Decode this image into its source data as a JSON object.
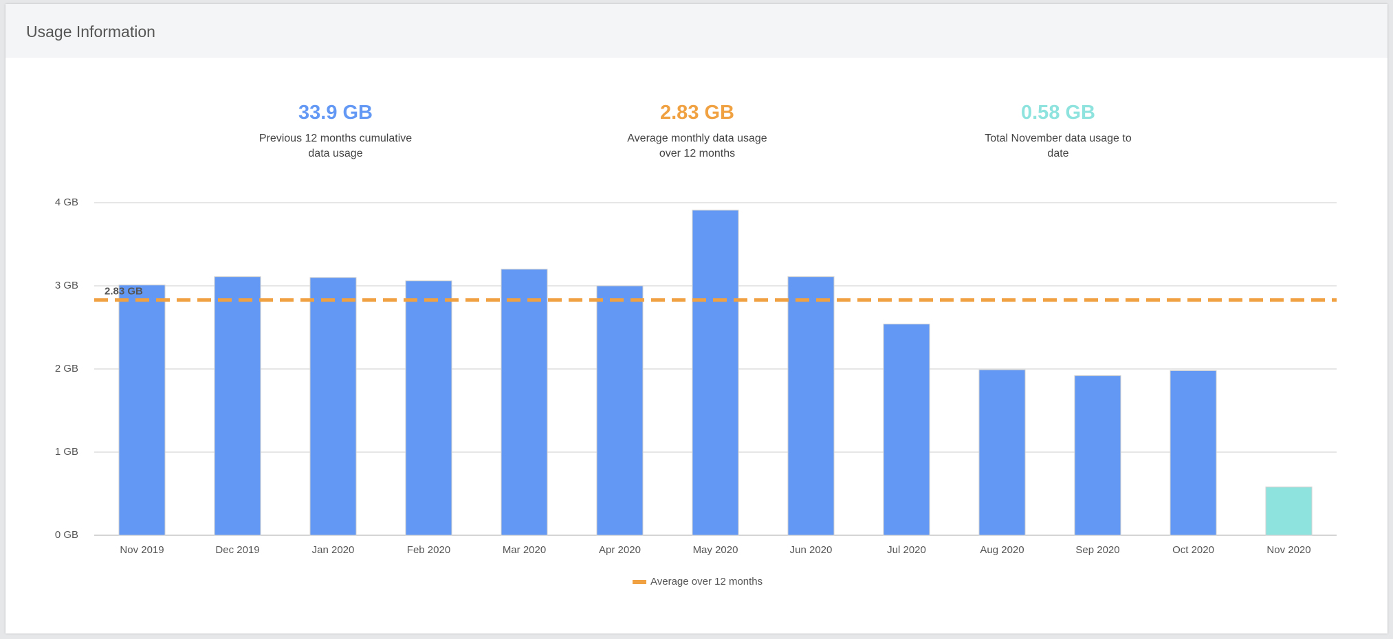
{
  "header": {
    "title": "Usage Information"
  },
  "stats": [
    {
      "value": "33.9 GB",
      "label": "Previous 12 months cumulative data usage",
      "color": "#6399f5"
    },
    {
      "value": "2.83 GB",
      "label": "Average monthly data usage over 12 months",
      "color": "#f0a142"
    },
    {
      "value": "0.58 GB",
      "label": "Total November data usage to date",
      "color": "#8ee3de"
    }
  ],
  "chart_data": {
    "type": "bar",
    "categories": [
      "Nov 2019",
      "Dec 2019",
      "Jan 2020",
      "Feb 2020",
      "Mar 2020",
      "Apr 2020",
      "May 2020",
      "Jun 2020",
      "Jul 2020",
      "Aug 2020",
      "Sep 2020",
      "Oct 2020",
      "Nov 2020"
    ],
    "values": [
      3.01,
      3.11,
      3.1,
      3.06,
      3.2,
      3.0,
      3.91,
      3.11,
      2.54,
      1.99,
      1.92,
      1.98,
      0.58
    ],
    "colors": [
      "#6399f5",
      "#6399f5",
      "#6399f5",
      "#6399f5",
      "#6399f5",
      "#6399f5",
      "#6399f5",
      "#6399f5",
      "#6399f5",
      "#6399f5",
      "#6399f5",
      "#6399f5",
      "#8ee3de"
    ],
    "ylim": [
      0,
      4
    ],
    "yticks": [
      {
        "value": 0,
        "label": "0 GB"
      },
      {
        "value": 1,
        "label": "1 GB"
      },
      {
        "value": 2,
        "label": "2 GB"
      },
      {
        "value": 3,
        "label": "3 GB"
      },
      {
        "value": 4,
        "label": "4 GB"
      }
    ],
    "grid": true,
    "reference_line": {
      "value": 2.83,
      "label": "2.83 GB",
      "name": "Average over 12 months",
      "color": "#f0a142"
    }
  }
}
